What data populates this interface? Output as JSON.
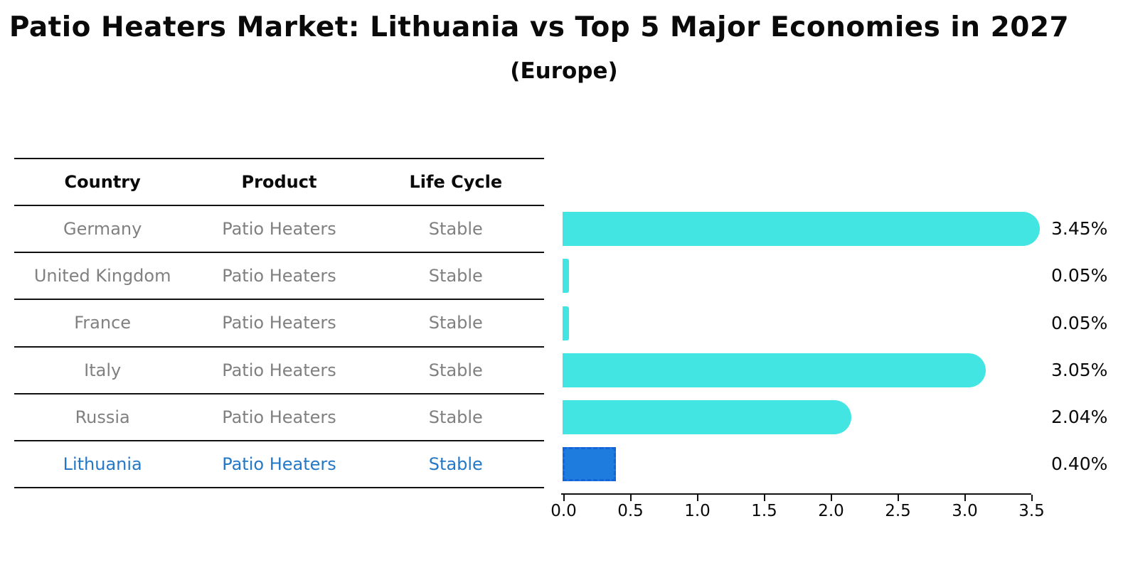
{
  "title": "Patio Heaters Market: Lithuania vs Top 5 Major Economies in 2027",
  "subtitle": "(Europe)",
  "table": {
    "headers": [
      "Country",
      "Product",
      "Life Cycle"
    ],
    "rows": [
      {
        "country": "Germany",
        "product": "Patio Heaters",
        "life_cycle": "Stable",
        "value_label": "3.45%",
        "highlight": false
      },
      {
        "country": "United Kingdom",
        "product": "Patio Heaters",
        "life_cycle": "Stable",
        "value_label": "0.05%",
        "highlight": false
      },
      {
        "country": "France",
        "product": "Patio Heaters",
        "life_cycle": "Stable",
        "value_label": "0.05%",
        "highlight": false
      },
      {
        "country": "Italy",
        "product": "Patio Heaters",
        "life_cycle": "Stable",
        "value_label": "3.05%",
        "highlight": false
      },
      {
        "country": "Russia",
        "product": "Patio Heaters",
        "life_cycle": "Stable",
        "value_label": "2.04%",
        "highlight": false
      },
      {
        "country": "Lithuania",
        "product": "Patio Heaters",
        "life_cycle": "Stable",
        "value_label": "0.40%",
        "highlight": true
      }
    ]
  },
  "chart_data": {
    "type": "bar",
    "orientation": "horizontal",
    "title": "Patio Heaters Market: Lithuania vs Top 5 Major Economies in 2027",
    "subtitle": "(Europe)",
    "categories": [
      "Germany",
      "United Kingdom",
      "France",
      "Italy",
      "Russia",
      "Lithuania"
    ],
    "values": [
      3.45,
      0.05,
      0.05,
      3.05,
      2.04,
      0.4
    ],
    "value_labels": [
      "3.45%",
      "0.05%",
      "0.05%",
      "3.05%",
      "2.04%",
      "0.40%"
    ],
    "units": "percent",
    "xlim": [
      0,
      3.5
    ],
    "x_ticks": [
      "0.0",
      "0.5",
      "1.0",
      "1.5",
      "2.0",
      "2.5",
      "3.0",
      "3.5"
    ],
    "grid": "off",
    "legend": "none",
    "highlight_index": 5,
    "bar_color": "#42e5e1",
    "highlight_bar_color": "#1e7cdf",
    "highlight_bar_border_color": "#1565d8",
    "highlight_text_color": "#2478c8",
    "table_text_color": "#808080",
    "axis_color": "#111111"
  }
}
